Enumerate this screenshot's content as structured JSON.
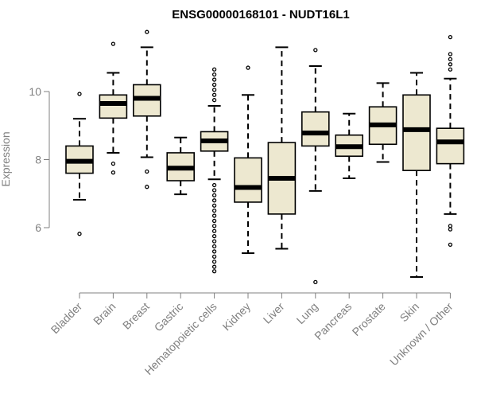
{
  "chart_data": {
    "type": "boxplot",
    "title": "ENSG00000168101 - NUDT16L1",
    "xlabel": "",
    "ylabel": "Expression",
    "yticks": [
      6,
      8,
      10
    ],
    "ylim": [
      4.3,
      11.8
    ],
    "colors": {
      "box_fill": "#EDE8D0",
      "box_stroke": "#000000",
      "axis": "#808080"
    },
    "categories": [
      "Bladder",
      "Brain",
      "Breast",
      "Gastric",
      "Hematopoietic cells",
      "Kidney",
      "Liver",
      "Lung",
      "Pancreas",
      "Prostate",
      "Skin",
      "Unknown / Other"
    ],
    "boxes": [
      {
        "q1": 7.6,
        "median": 7.95,
        "q3": 8.4,
        "whisker_low": 6.82,
        "whisker_high": 9.2,
        "outliers": [
          5.82,
          9.93
        ]
      },
      {
        "q1": 9.22,
        "median": 9.65,
        "q3": 9.9,
        "whisker_low": 8.2,
        "whisker_high": 10.55,
        "outliers": [
          7.62,
          7.88,
          11.4
        ]
      },
      {
        "q1": 9.28,
        "median": 9.8,
        "q3": 10.2,
        "whisker_low": 8.07,
        "whisker_high": 11.3,
        "outliers": [
          7.2,
          7.65,
          11.75
        ]
      },
      {
        "q1": 7.38,
        "median": 7.75,
        "q3": 8.2,
        "whisker_low": 6.98,
        "whisker_high": 8.65,
        "outliers": []
      },
      {
        "q1": 8.25,
        "median": 8.55,
        "q3": 8.82,
        "whisker_low": 7.42,
        "whisker_high": 9.58,
        "outliers": [
          4.72,
          4.85,
          5.0,
          5.15,
          5.3,
          5.45,
          5.6,
          5.75,
          5.9,
          6.05,
          6.2,
          6.35,
          6.5,
          6.65,
          6.8,
          6.95,
          7.1,
          7.25,
          9.75,
          9.9,
          10.05,
          10.2,
          10.35,
          10.5,
          10.65
        ]
      },
      {
        "q1": 6.75,
        "median": 7.18,
        "q3": 8.05,
        "whisker_low": 5.25,
        "whisker_high": 9.9,
        "outliers": [
          10.7
        ]
      },
      {
        "q1": 6.4,
        "median": 7.45,
        "q3": 8.5,
        "whisker_low": 5.38,
        "whisker_high": 11.3,
        "outliers": []
      },
      {
        "q1": 8.4,
        "median": 8.78,
        "q3": 9.4,
        "whisker_low": 7.08,
        "whisker_high": 10.75,
        "outliers": [
          4.4,
          11.22
        ]
      },
      {
        "q1": 8.1,
        "median": 8.38,
        "q3": 8.72,
        "whisker_low": 7.45,
        "whisker_high": 9.35,
        "outliers": []
      },
      {
        "q1": 8.45,
        "median": 9.02,
        "q3": 9.55,
        "whisker_low": 7.93,
        "whisker_high": 10.25,
        "outliers": []
      },
      {
        "q1": 7.68,
        "median": 8.88,
        "q3": 9.9,
        "whisker_low": 4.55,
        "whisker_high": 10.55,
        "outliers": []
      },
      {
        "q1": 7.88,
        "median": 8.52,
        "q3": 8.92,
        "whisker_low": 6.4,
        "whisker_high": 10.38,
        "outliers": [
          5.5,
          5.95,
          6.05,
          10.65,
          10.8,
          10.95,
          11.1,
          11.6
        ]
      }
    ]
  }
}
